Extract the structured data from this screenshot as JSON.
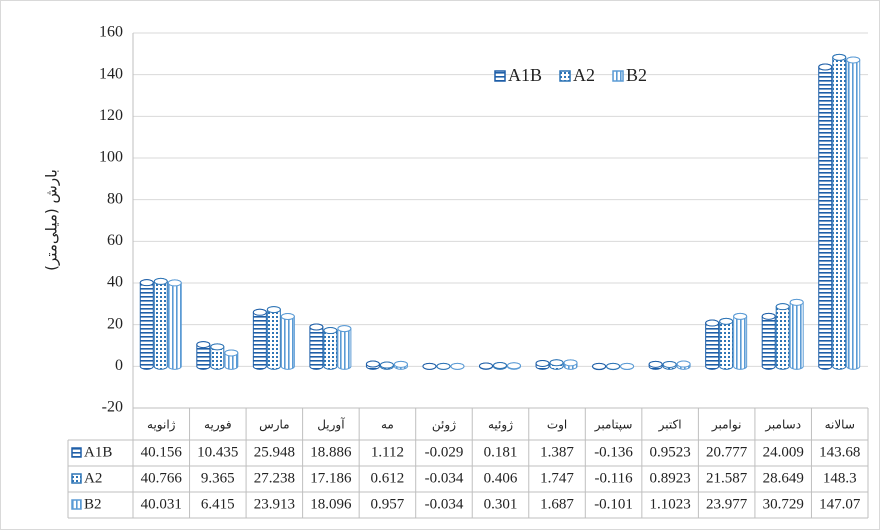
{
  "chart_data": {
    "type": "bar",
    "ylabel": "بارش (میلی‌متر)",
    "categories": [
      "ژانویه",
      "فوریه",
      "مارس",
      "آوریل",
      "مه",
      "ژوئن",
      "ژوئیه",
      "اوت",
      "سپتامبر",
      "اکتبر",
      "نوامبر",
      "دسامبر",
      "سالانه"
    ],
    "series": [
      {
        "name": "A1B",
        "color": "#1f5fa8",
        "values": [
          40.156,
          10.435,
          25.948,
          18.886,
          1.112,
          -0.029,
          0.181,
          1.387,
          -0.136,
          0.9523,
          20.777,
          24.009,
          143.68
        ]
      },
      {
        "name": "A2",
        "color": "#2e75b6",
        "values": [
          40.766,
          9.365,
          27.238,
          17.186,
          0.612,
          -0.034,
          0.406,
          1.747,
          -0.116,
          0.8923,
          21.587,
          28.649,
          148.3
        ]
      },
      {
        "name": "B2",
        "color": "#5b9bd5",
        "values": [
          40.031,
          6.415,
          23.913,
          18.096,
          0.957,
          -0.034,
          0.301,
          1.687,
          -0.101,
          1.1023,
          23.977,
          30.729,
          147.07
        ]
      }
    ],
    "ylim": [
      -20,
      160
    ],
    "yticks": [
      -20,
      0,
      20,
      40,
      60,
      80,
      100,
      120,
      140,
      160
    ],
    "grid": true,
    "legend": "top"
  }
}
